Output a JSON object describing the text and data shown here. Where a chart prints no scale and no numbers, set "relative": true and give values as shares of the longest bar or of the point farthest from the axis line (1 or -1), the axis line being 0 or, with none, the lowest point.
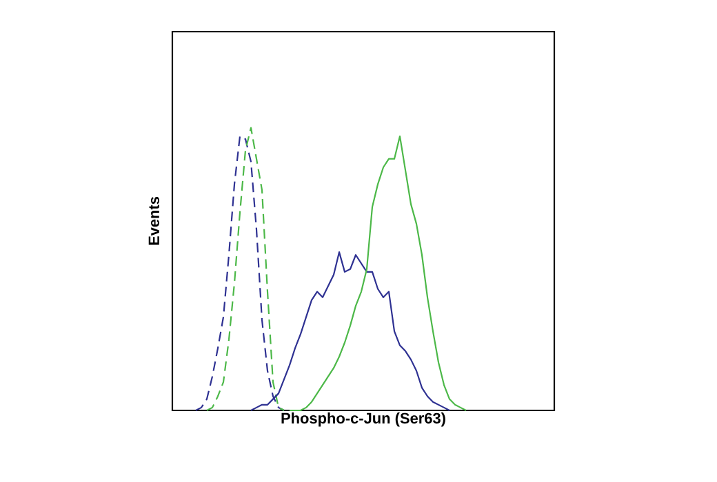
{
  "chart_data": {
    "type": "line",
    "relative": true,
    "xlabel": "Phospho-c-Jun (Ser63)",
    "ylabel": "Events",
    "categories": [
      null,
      null,
      null,
      null,
      null,
      null,
      null,
      null,
      null,
      null,
      null,
      null,
      null,
      null,
      null,
      null,
      null,
      null,
      null,
      null,
      null,
      null,
      null,
      null,
      null,
      null,
      null,
      null,
      null,
      null,
      null,
      null,
      null,
      null,
      null,
      null,
      null,
      null,
      null,
      null,
      null,
      null,
      null,
      null,
      null,
      null,
      null,
      null,
      null,
      null,
      null,
      null,
      null,
      null,
      null,
      null,
      null,
      null,
      null,
      null,
      null,
      null,
      null,
      null,
      null,
      null,
      null,
      null,
      null,
      null
    ],
    "series": [
      {
        "color": "#2e3192",
        "line_style": "dashed",
        "values": [
          null,
          null,
          null,
          null,
          0,
          0.01,
          0.04,
          0.12,
          0.22,
          0.33,
          0.55,
          0.8,
          0.97,
          0.96,
          0.88,
          0.64,
          0.32,
          0.14,
          0.05,
          0.01,
          0,
          null,
          null,
          null,
          null,
          null,
          null,
          null,
          null,
          null,
          null,
          null,
          null,
          null,
          null,
          null,
          null,
          null,
          null,
          null,
          null,
          null,
          null,
          null,
          null,
          null,
          null,
          null,
          null,
          null,
          null,
          null,
          null,
          null,
          null,
          null,
          null,
          null,
          null,
          null,
          null,
          null,
          null,
          null,
          null,
          null,
          null,
          null,
          null,
          null
        ]
      },
      {
        "color": "#4cb848",
        "line_style": "dashed",
        "values": [
          null,
          null,
          null,
          null,
          null,
          null,
          0,
          0.01,
          0.05,
          0.1,
          0.25,
          0.45,
          0.7,
          0.92,
          1,
          0.89,
          0.78,
          0.42,
          0.1,
          0.01,
          0,
          null,
          null,
          null,
          null,
          null,
          null,
          null,
          null,
          null,
          null,
          null,
          null,
          null,
          null,
          null,
          null,
          null,
          null,
          null,
          null,
          null,
          null,
          null,
          null,
          null,
          null,
          null,
          null,
          null,
          null,
          null,
          null,
          null,
          null,
          null,
          null,
          null,
          null,
          null,
          null,
          null,
          null,
          null,
          null,
          null,
          null,
          null,
          null,
          null
        ]
      },
      {
        "color": "#2e3192",
        "line_style": "solid",
        "values": [
          null,
          null,
          null,
          null,
          null,
          null,
          null,
          null,
          null,
          null,
          null,
          null,
          null,
          null,
          0,
          0.01,
          0.02,
          0.02,
          0.04,
          0.06,
          0.11,
          0.16,
          0.22,
          0.27,
          0.33,
          0.39,
          0.42,
          0.4,
          0.44,
          0.48,
          0.56,
          0.49,
          0.5,
          0.55,
          0.52,
          0.49,
          0.49,
          0.43,
          0.4,
          0.42,
          0.28,
          0.23,
          0.21,
          0.18,
          0.14,
          0.08,
          0.05,
          0.03,
          0.02,
          0.01,
          0,
          null,
          null,
          null,
          null,
          null,
          null,
          null,
          null,
          null,
          null,
          null,
          null,
          null,
          null,
          null,
          null,
          null,
          null,
          null
        ]
      },
      {
        "color": "#4cb848",
        "line_style": "solid",
        "values": [
          null,
          null,
          null,
          null,
          null,
          null,
          null,
          null,
          null,
          null,
          null,
          null,
          null,
          null,
          null,
          null,
          null,
          null,
          null,
          null,
          null,
          0,
          0,
          0,
          0.01,
          0.03,
          0.06,
          0.09,
          0.12,
          0.15,
          0.19,
          0.24,
          0.3,
          0.37,
          0.42,
          0.5,
          0.72,
          0.8,
          0.86,
          0.89,
          0.89,
          0.97,
          0.85,
          0.73,
          0.66,
          0.55,
          0.4,
          0.28,
          0.17,
          0.09,
          0.04,
          0.02,
          0.01,
          0,
          null,
          null,
          null,
          null,
          null,
          null,
          null,
          null,
          null,
          null,
          null,
          null,
          null,
          null,
          null,
          null
        ]
      }
    ]
  }
}
